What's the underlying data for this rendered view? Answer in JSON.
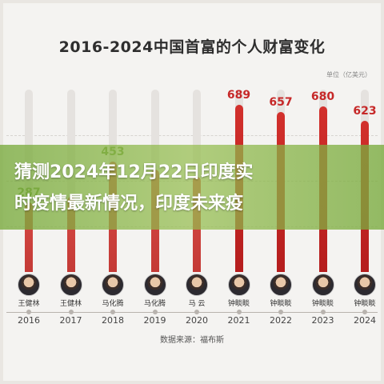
{
  "chart_data": {
    "type": "bar",
    "title": "2016-2024中国首富的个人财富变化",
    "unit": "单位（亿美元）",
    "categories": [
      "2016",
      "2017",
      "2018",
      "2019",
      "2020",
      "2021",
      "2022",
      "2023",
      "2024"
    ],
    "names": [
      "王健林",
      "王健林",
      "马化腾",
      "马化腾",
      "马 云",
      "钟睒睒",
      "钟睒睒",
      "钟睒睒",
      "钟睒睒"
    ],
    "values": [
      287,
      310,
      453,
      420,
      390,
      689,
      657,
      680,
      623
    ],
    "value_labels": [
      "287",
      "",
      "453",
      "",
      "",
      "689",
      "657",
      "680",
      "623"
    ],
    "ylim": [
      0,
      750
    ],
    "source": "数据来源：福布斯",
    "bar_color": "#c62828"
  },
  "banner": {
    "line1": "猜测2024年12月22日印度实",
    "line2": "时疫情最新情况，印度未来疫"
  }
}
